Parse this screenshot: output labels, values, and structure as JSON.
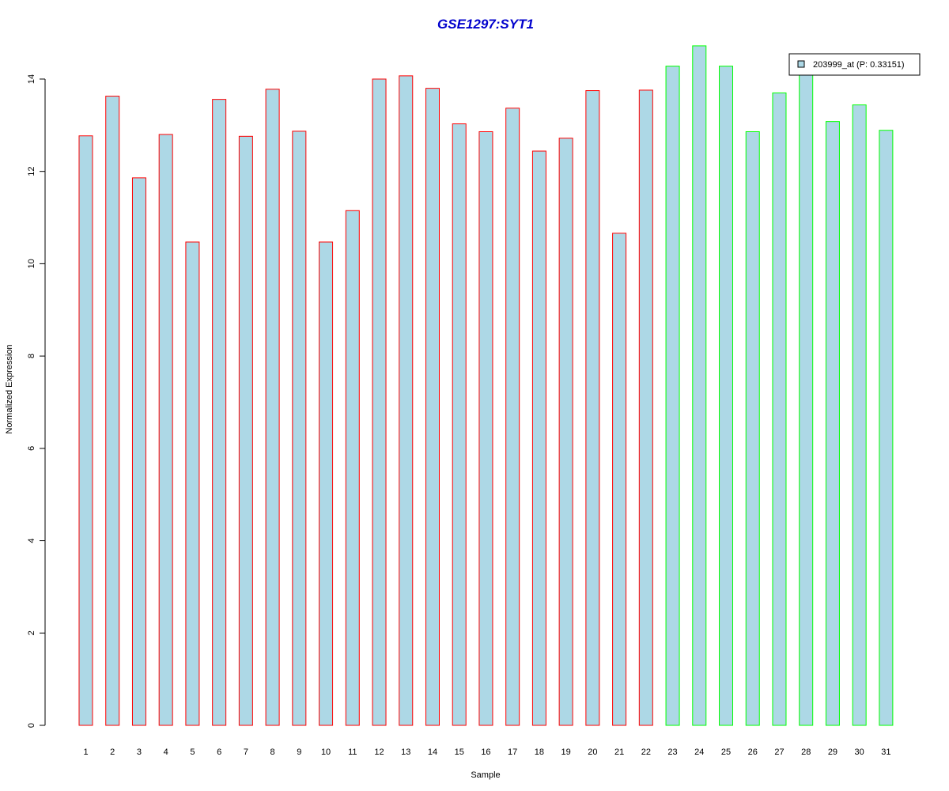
{
  "chart_data": {
    "type": "bar",
    "title": "GSE1297:SYT1",
    "xlabel": "Sample",
    "ylabel": "Normalized Expression",
    "ylim": [
      0,
      14.7
    ],
    "yticks": [
      0,
      2,
      4,
      6,
      8,
      10,
      12,
      14
    ],
    "categories": [
      "1",
      "2",
      "3",
      "4",
      "5",
      "6",
      "7",
      "8",
      "9",
      "10",
      "11",
      "12",
      "13",
      "14",
      "15",
      "16",
      "17",
      "18",
      "19",
      "20",
      "21",
      "22",
      "23",
      "24",
      "25",
      "26",
      "27",
      "28",
      "29",
      "30",
      "31"
    ],
    "values": [
      12.77,
      13.63,
      11.86,
      12.8,
      10.47,
      13.56,
      12.76,
      13.78,
      12.87,
      10.47,
      11.15,
      14.0,
      14.07,
      13.8,
      13.03,
      12.86,
      13.37,
      12.44,
      12.72,
      13.75,
      10.66,
      13.76,
      14.28,
      14.72,
      14.28,
      12.86,
      13.7,
      14.2,
      13.08,
      13.44,
      12.89
    ],
    "groups": [
      "red",
      "red",
      "red",
      "red",
      "red",
      "red",
      "red",
      "red",
      "red",
      "red",
      "red",
      "red",
      "red",
      "red",
      "red",
      "red",
      "red",
      "red",
      "red",
      "red",
      "red",
      "red",
      "green",
      "green",
      "green",
      "green",
      "green",
      "green",
      "green",
      "green",
      "green"
    ],
    "legend": {
      "label": "203999_at (P: 0.33151)",
      "placement": "top-right"
    },
    "colors": {
      "bar_fill": "#add8e6",
      "border_red": "#ff0000",
      "border_green": "#00ff00",
      "title": "#0000cd",
      "axis": "#000000"
    }
  }
}
